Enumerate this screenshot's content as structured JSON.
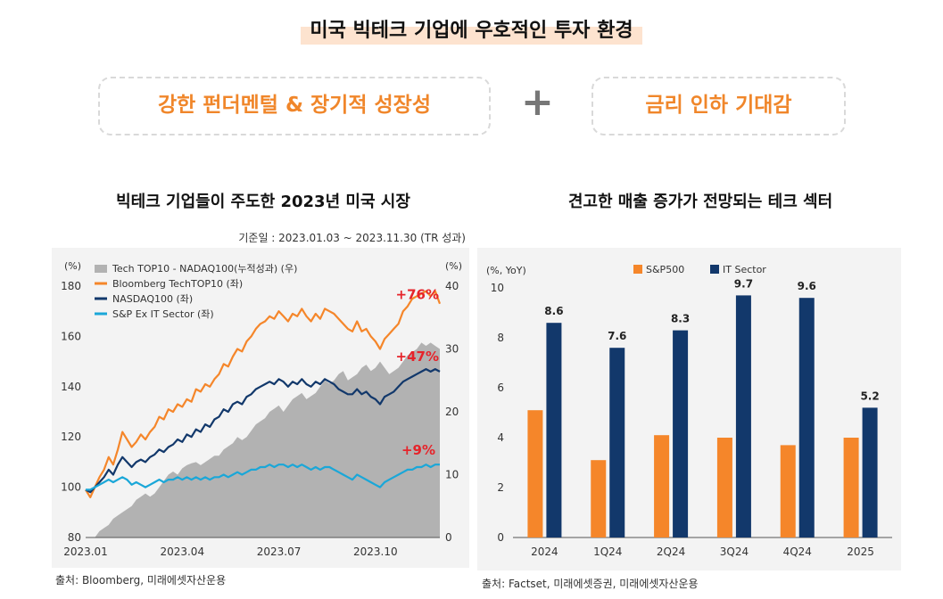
{
  "header": {
    "title": "미국 빅테크 기업에 우호적인 투자 환경",
    "left_box": "강한 펀더멘털 & 장기적 성장성",
    "plus": "+",
    "right_box": "금리 인하 기대감"
  },
  "left_chart": {
    "subtitle": "빅테크 기업들이 주도한 2023년 미국 시장",
    "basis": "기준일 : 2023.01.03 ~ 2023.11.30 (TR 성과)",
    "source": "출처: Bloomberg, 미래에셋자산운용",
    "left_unit": "(%)",
    "right_unit": "(%)"
  },
  "right_chart": {
    "subtitle": "견고한 매출 증가가 전망되는 테크 섹터",
    "source": "출처: Factset, 미래에셋증권, 미래에셋자산운용",
    "unit": "(%, YoY)"
  },
  "colors": {
    "orange": "#f5862a",
    "navy": "#12386b",
    "cyan": "#1aa7d8",
    "gray_area": "#b2b2b2",
    "red": "#e6232a",
    "bar_orange": "#f5862a",
    "bar_navy": "#12386b"
  },
  "chart_data": [
    {
      "type": "line",
      "title": "빅테크 기업들이 주도한 2023년 미국 시장",
      "x_ticks": [
        "2023.01",
        "2023.04",
        "2023.07",
        "2023.10"
      ],
      "y_left": {
        "unit": "(%)",
        "ylim": [
          80,
          180
        ],
        "ticks": [
          80,
          100,
          120,
          140,
          160,
          180
        ]
      },
      "y_right": {
        "unit": "(%)",
        "ylim": [
          0,
          40
        ],
        "ticks": [
          0,
          10,
          20,
          30,
          40
        ]
      },
      "series": [
        {
          "name": "Tech TOP10 - NADAQ100(누적성과) (우)",
          "axis": "right",
          "style": "area",
          "color": "#b2b2b2",
          "values": [
            0,
            0,
            0,
            1,
            1.5,
            2,
            3,
            3.5,
            4,
            4.5,
            5,
            6,
            6.5,
            7,
            6.5,
            7,
            8,
            9,
            10,
            10.5,
            10,
            11,
            11.5,
            11.8,
            12,
            11.5,
            12,
            12.5,
            13,
            13,
            14,
            14.5,
            15,
            16,
            15.5,
            16,
            17,
            18,
            18.5,
            19,
            20,
            20.5,
            21,
            20,
            21,
            22,
            22.5,
            23,
            22,
            22.5,
            23,
            24,
            25,
            24.5,
            25,
            26,
            26.5,
            25,
            25.5,
            26,
            27,
            27.5,
            26.5,
            27,
            28,
            27,
            26,
            26.5,
            27,
            28,
            29,
            29.5,
            30,
            31,
            30.5,
            31,
            30.5,
            30
          ]
        },
        {
          "name": "Bloomberg TechTOP10 (좌)",
          "axis": "left",
          "style": "line",
          "color": "#f5862a",
          "values": [
            99,
            96,
            100,
            104,
            107,
            112,
            109,
            115,
            122,
            119,
            116,
            118,
            121,
            119,
            122,
            124,
            128,
            127,
            131,
            130,
            133,
            132,
            135,
            134,
            139,
            138,
            141,
            140,
            143,
            145,
            149,
            148,
            152,
            155,
            154,
            158,
            160,
            163,
            165,
            166,
            168,
            167,
            170,
            168,
            166,
            169,
            168,
            171,
            168,
            166,
            169,
            167,
            171,
            170,
            169,
            167,
            165,
            163,
            162,
            166,
            162,
            163,
            160,
            158,
            155,
            159,
            161,
            163,
            165,
            170,
            172,
            175,
            176,
            177,
            178,
            176,
            178,
            173
          ]
        },
        {
          "name": "NASDAQ100 (좌)",
          "axis": "left",
          "style": "line",
          "color": "#12386b",
          "values": [
            99,
            98,
            100,
            102,
            104,
            107,
            105,
            109,
            112,
            110,
            108,
            110,
            111,
            110,
            112,
            113,
            115,
            114,
            116,
            117,
            119,
            118,
            121,
            120,
            123,
            122,
            125,
            124,
            127,
            128,
            131,
            130,
            133,
            134,
            133,
            136,
            137,
            139,
            140,
            141,
            142,
            141,
            143,
            142,
            140,
            142,
            141,
            143,
            141,
            140,
            142,
            141,
            143,
            142,
            141,
            139,
            138,
            137,
            137,
            139,
            137,
            138,
            136,
            135,
            133,
            136,
            137,
            138,
            140,
            142,
            143,
            144,
            145,
            146,
            147,
            146,
            147,
            146
          ]
        },
        {
          "name": "S&P Ex IT Sector (좌)",
          "axis": "left",
          "style": "line",
          "color": "#1aa7d8",
          "values": [
            99,
            99,
            100,
            101,
            102,
            103,
            102,
            103,
            104,
            103,
            101,
            102,
            101,
            100,
            101,
            102,
            103,
            102,
            103,
            103,
            104,
            103,
            104,
            103,
            104,
            103,
            104,
            103,
            104,
            104,
            105,
            104,
            105,
            106,
            105,
            106,
            107,
            107,
            108,
            108,
            109,
            108,
            109,
            109,
            108,
            109,
            108,
            109,
            108,
            107,
            108,
            107,
            108,
            108,
            107,
            106,
            105,
            104,
            103,
            105,
            104,
            103,
            102,
            101,
            100,
            102,
            103,
            104,
            105,
            106,
            107,
            107,
            108,
            108,
            109,
            108,
            109,
            109
          ]
        }
      ],
      "annotations": [
        "+76%",
        "+47%",
        "+9%"
      ]
    },
    {
      "type": "bar",
      "title": "견고한 매출 증가가 전망되는 테크 섹터",
      "ylabel": "(%, YoY)",
      "ylim": [
        0,
        10
      ],
      "y_ticks": [
        0,
        2,
        4,
        6,
        8,
        10
      ],
      "categories": [
        "2024",
        "1Q24",
        "2Q24",
        "3Q24",
        "4Q24",
        "2025"
      ],
      "series": [
        {
          "name": "S&P500",
          "color": "#f5862a",
          "values": [
            5.1,
            3.1,
            4.1,
            4.0,
            3.7,
            4.0
          ]
        },
        {
          "name": "IT Sector",
          "color": "#12386b",
          "values": [
            8.6,
            7.6,
            8.3,
            9.7,
            9.6,
            5.2
          ]
        }
      ],
      "labelled_series": "IT Sector",
      "value_labels": [
        "8.6",
        "7.6",
        "8.3",
        "9.7",
        "9.6",
        "5.2"
      ]
    }
  ]
}
